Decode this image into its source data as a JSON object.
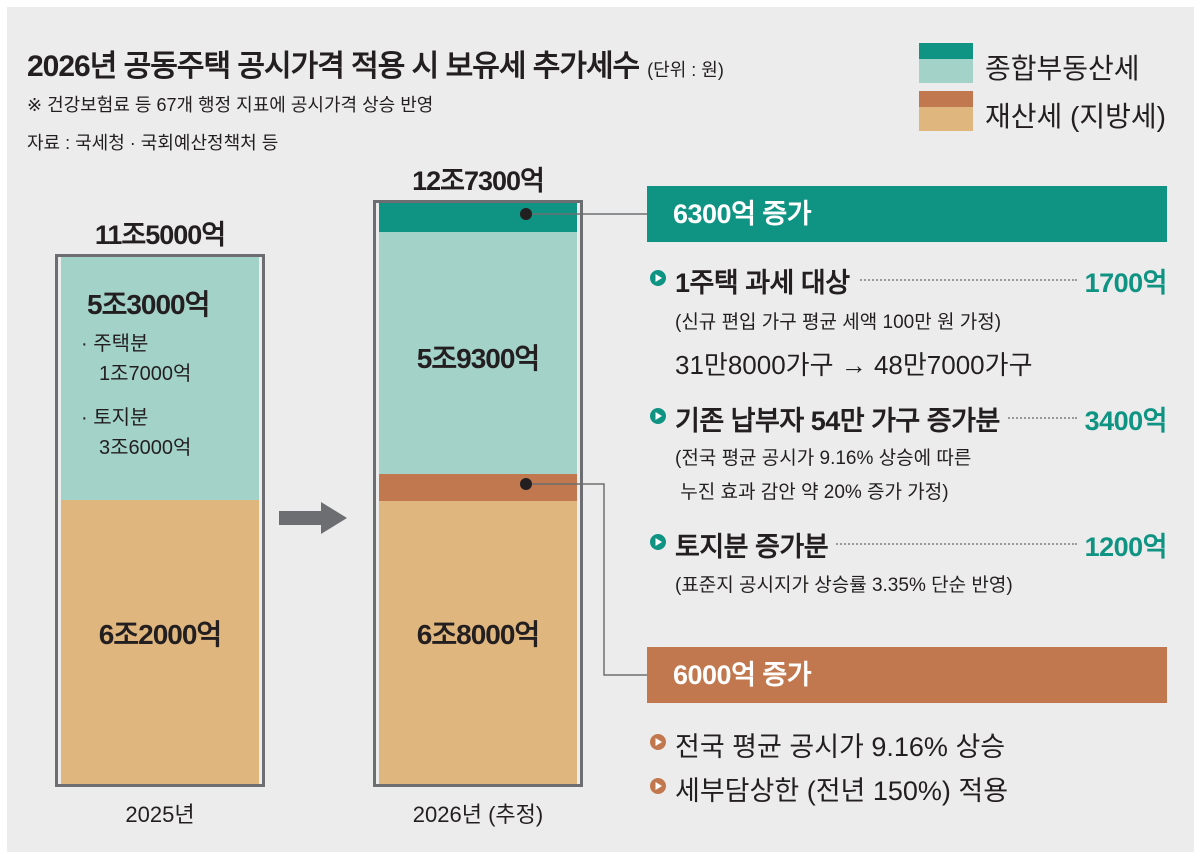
{
  "title": "2026년 공동주택 공시가격 적용 시 보유세 추가세수",
  "unit": "(단위 : 원)",
  "note": "※ 건강보험료 등 67개 행정 지표에 공시가격 상승 반영",
  "source": "자료 : 국세청 · 국회예산정책처 등",
  "colors": {
    "comprehensive_dark": "#0f9383",
    "comprehensive_light": "#a3d2c9",
    "property_dark": "#c1784e",
    "property_light": "#e0b67f",
    "background": "#ececec"
  },
  "legend": [
    {
      "label": "종합부동산세",
      "color_dark": "#0f9383",
      "color_light": "#a3d2c9"
    },
    {
      "label": "재산세 (지방세)",
      "color_dark": "#c1784e",
      "color_light": "#e0b67f"
    }
  ],
  "chart_data": {
    "type": "bar",
    "stacked": true,
    "unit": "억 원",
    "categories": [
      "2025년",
      "2026년 (추정)"
    ],
    "totals": [
      115000,
      127300
    ],
    "total_labels": [
      "11조5000억",
      "12조7300억"
    ],
    "series": [
      {
        "name": "재산세 (지방세)",
        "values": [
          62000,
          68000
        ],
        "labels": [
          "6조2000억",
          "6조8000억"
        ],
        "increase_value": 6000,
        "increase_label": "6000억 증가"
      },
      {
        "name": "종합부동산세",
        "values": [
          53000,
          59300
        ],
        "labels": [
          "5조3000억",
          "5조9300억"
        ],
        "increase_value": 6300,
        "increase_label": "6300억 증가"
      }
    ],
    "breakdown_2025_comprehensive": [
      {
        "label": "· 주택분",
        "value_label": "1조7000억",
        "value": 17000
      },
      {
        "label": "· 토지분",
        "value_label": "3조6000억",
        "value": 36000
      }
    ],
    "xlabel": "",
    "ylabel": "",
    "ylim": [
      0,
      127300
    ]
  },
  "comprehensive_increase": {
    "title": "6300억 증가",
    "items": [
      {
        "label": "1주택 과세 대상",
        "value": "1700억",
        "detail": [
          "(신규 편입 가구 평균 세액 100만 원 가정)"
        ],
        "households": "31만8000가구 → 48만7000가구"
      },
      {
        "label": "기존 납부자 54만 가구 증가분",
        "value": "3400억",
        "detail": [
          "(전국 평균 공시가 9.16% 상승에 따른",
          " 누진 효과 감안 약 20% 증가 가정)"
        ]
      },
      {
        "label": "토지분 증가분",
        "value": "1200억",
        "detail": [
          "(표준지 공시지가 상승률 3.35% 단순 반영)"
        ]
      }
    ]
  },
  "property_increase": {
    "title": "6000억 증가",
    "items": [
      {
        "label": "전국 평균 공시가 9.16% 상승"
      },
      {
        "label": "세부담상한 (전년 150%) 적용"
      }
    ]
  }
}
